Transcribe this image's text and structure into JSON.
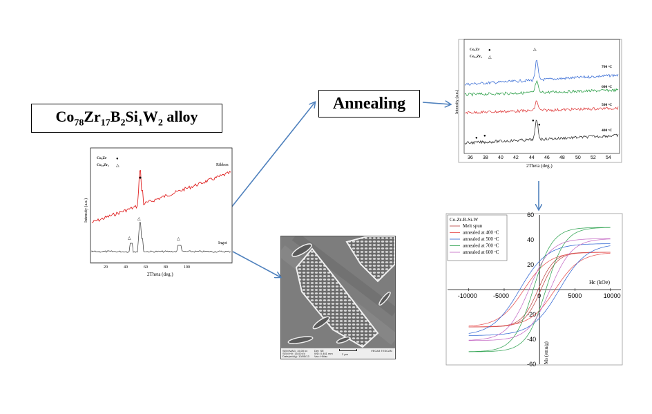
{
  "alloy": {
    "base": "Co",
    "sub1": "78",
    "el2": "Zr",
    "sub2": "17",
    "el3": "B",
    "sub3": "2",
    "el4": "Si",
    "sub4": "1",
    "el5": "W",
    "sub5": "2",
    "suffix": "alloy"
  },
  "annealing_label": "Annealing",
  "arrow_color": "#4f81bd",
  "xrd_initial": {
    "legend": [
      {
        "label": "Co₅Zr",
        "marker": "●"
      },
      {
        "label": "Co₂₃Zr₂",
        "marker": "△"
      }
    ],
    "trace_labels": [
      "Ribbon",
      "Ingot"
    ],
    "xlabel": "2Theta (deg.)",
    "ylabel": "Intensity (a.u.)",
    "xticks": [
      "20",
      "40",
      "60",
      "80",
      "100"
    ]
  },
  "xrd_annealed": {
    "legend": [
      {
        "label": "Co₅Zr",
        "marker": "●"
      },
      {
        "label": "Co₂₃Zr₂",
        "marker": "△"
      }
    ],
    "trace_labels": [
      "700 ᵒC",
      "600 ᵒC",
      "500 ᵒC",
      "400 ᵒC"
    ],
    "xlabel": "2Theta (deg.)",
    "ylabel": "Intensity (a.u.)",
    "xticks": [
      "36",
      "38",
      "40",
      "42",
      "44",
      "46",
      "48",
      "50",
      "52",
      "54"
    ]
  },
  "sem": {
    "info": [
      "SEM MAG: 15.00 kx",
      "SEM HV: 15.00 kV",
      "Date(m/d/y): 10/05/13",
      "Det: SE",
      "WD: 0.461 mm",
      "Vac: HiVac"
    ],
    "scale": "2 μm",
    "brand": "VEGA3 TESCAN"
  },
  "chart_data": {
    "type": "line",
    "title": "Co-Zr-B-Si-W",
    "xlabel": "Hc (kOe)",
    "ylabel": "Ms (emu/g)",
    "xlim": [
      -13000,
      11500
    ],
    "ylim": [
      -60,
      60
    ],
    "xticks": [
      -10000,
      -5000,
      0,
      5000,
      10000
    ],
    "yticks": [
      -60,
      -40,
      -20,
      20,
      40,
      60
    ],
    "series": [
      {
        "name": "Melt spun",
        "color": "#c0504d",
        "ms": 30,
        "hc": 200
      },
      {
        "name": "annealed at 400 ᵒC",
        "color": "#e85858",
        "ms": 30,
        "hc": 2200
      },
      {
        "name": "annealed at 500 ᵒC",
        "color": "#3c6fd6",
        "ms": 37,
        "hc": 2800
      },
      {
        "name": "annealed at 700 ᵒC",
        "color": "#3aa85a",
        "ms": 50,
        "hc": 900
      },
      {
        "name": "annealed at 600 ᵒC",
        "color": "#c873c8",
        "ms": 41,
        "hc": 1500
      }
    ]
  }
}
